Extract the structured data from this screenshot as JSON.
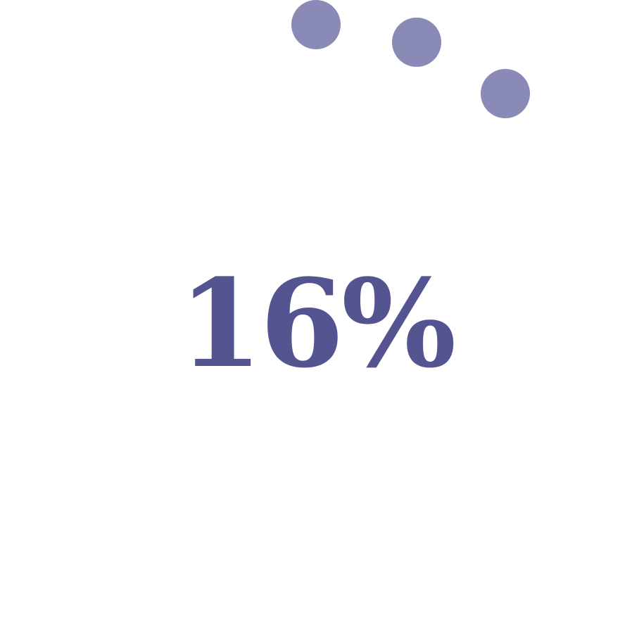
{
  "loader": {
    "progress_label": "16%",
    "progress_value": 16,
    "colors": {
      "text": "#535490",
      "dots": "#8a8ab6",
      "background": "#ffffff"
    }
  }
}
